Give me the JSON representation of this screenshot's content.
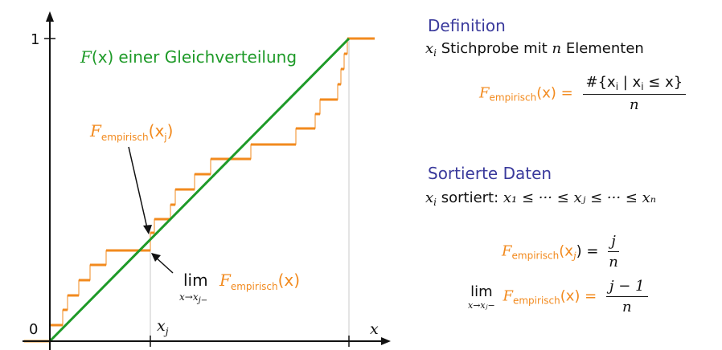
{
  "left_panel": {
    "tick_one": "1",
    "tick_zero": "0",
    "axis_x_label": "x",
    "tick_xj": "x",
    "tick_xj_sub": "j",
    "uniform_label_F": "F",
    "uniform_label_arg": "(x)",
    "uniform_label_text": "einer Gleichverteilung",
    "femp_label_F": "F",
    "femp_label_sub": "empirisch",
    "femp_label_arg": "(x",
    "femp_label_arg_sub": "j",
    "femp_label_close": ")",
    "lim_word": "lim",
    "lim_sub": "x→x",
    "lim_sub_j": "j−",
    "lim_F": "F",
    "lim_F_sub": "empirisch",
    "lim_F_arg": "(x)",
    "colors": {
      "uniform": "#1e9a28",
      "empirical": "#f28a1e",
      "axis": "#111111",
      "guide": "#c8c8c8"
    }
  },
  "right_panel": {
    "definition_heading": "Definition",
    "definition_line_pre": "x",
    "definition_line_sub": "i",
    "definition_line_text": " Stichprobe mit ",
    "definition_line_n": "n",
    "definition_line_end": " Elementen",
    "formula1_F": "F",
    "formula1_sub": "empirisch",
    "formula1_arg": "(x) =",
    "formula1_num": "#{x",
    "formula1_num_i": "i",
    "formula1_num_mid": " | x",
    "formula1_num_i2": "i",
    "formula1_num_end": " ≤ x}",
    "formula1_den": "n",
    "sorted_heading": "Sortierte Daten",
    "sorted_line_x": "x",
    "sorted_line_i": "i",
    "sorted_line_word": " sortiert: ",
    "sorted_line_chain": "x₁ ≤ ··· ≤ xⱼ ≤ ··· ≤ xₙ",
    "formula2_F": "F",
    "formula2_sub": "empirisch",
    "formula2_arg": "(x",
    "formula2_arg_sub": "j",
    "formula2_close": ") =",
    "formula2_num": "j",
    "formula2_den": "n",
    "formula3_lim": "lim",
    "formula3_lim_sub": "x→xⱼ−",
    "formula3_F": "F",
    "formula3_sub": "empirisch",
    "formula3_arg": "(x) =",
    "formula3_num": "j − 1",
    "formula3_den": "n"
  }
}
